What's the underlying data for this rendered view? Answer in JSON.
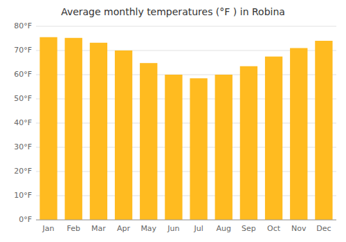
{
  "chart_data": {
    "type": "bar",
    "title": "Average monthly temperatures (°F ) in Robina",
    "categories": [
      "Jan",
      "Feb",
      "Mar",
      "Apr",
      "May",
      "Jun",
      "Jul",
      "Aug",
      "Sep",
      "Oct",
      "Nov",
      "Dec"
    ],
    "values": [
      75.5,
      75.2,
      73.2,
      70.0,
      64.8,
      60.0,
      58.5,
      60.0,
      63.5,
      67.5,
      71.0,
      74.0
    ],
    "color": "#FFBB20",
    "ylim": [
      0,
      80
    ],
    "yticks": [
      {
        "value": 0,
        "label": "0°F"
      },
      {
        "value": 10,
        "label": "10°F"
      },
      {
        "value": 20,
        "label": "20°F"
      },
      {
        "value": 30,
        "label": "30°F"
      },
      {
        "value": 40,
        "label": "40°F"
      },
      {
        "value": 50,
        "label": "50°F"
      },
      {
        "value": 60,
        "label": "60°F"
      },
      {
        "value": 70,
        "label": "70°F"
      },
      {
        "value": 80,
        "label": "80°F"
      }
    ],
    "grid": true
  }
}
